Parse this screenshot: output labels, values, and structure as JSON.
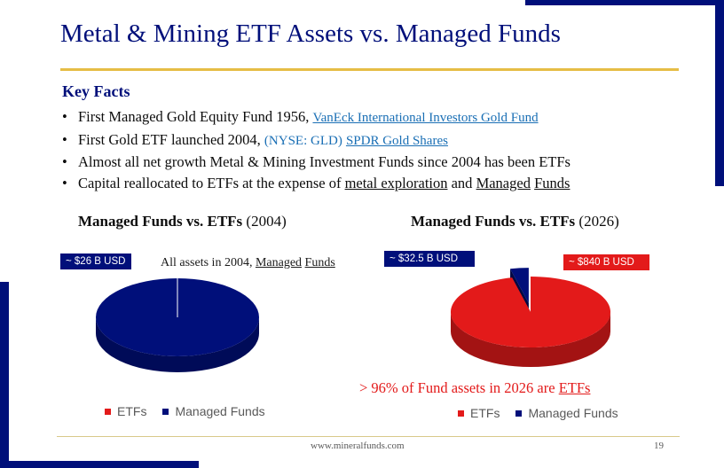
{
  "title": "Metal & Mining ETF Assets vs. Managed Funds",
  "key_facts": {
    "heading": "Key Facts",
    "bullet_symbol": "•",
    "bullets": [
      {
        "text": "First Managed Gold Equity Fund 1956, ",
        "link": "VanEck International Investors Gold Fund"
      },
      {
        "text": "First Gold ETF launched 2004, ",
        "ticker": "(NYSE: GLD)",
        "link": "SPDR Gold Shares"
      },
      {
        "text": "Almost all net growth Metal & Mining Investment Funds since 2004 has been ETFs"
      },
      {
        "text": "Capital reallocated to ETFs at the expense of ",
        "u1": "metal exploration",
        "mid": " and ",
        "u2": "Managed",
        "sp": " ",
        "u3": "Funds"
      }
    ]
  },
  "chart_data": [
    {
      "type": "pie",
      "title_bold": "Managed Funds vs. ETFs",
      "title_rest": " (2004)",
      "slices": [
        {
          "name": "ETFs",
          "value": 0,
          "color": "#e31a1a"
        },
        {
          "name": "Managed Funds",
          "value": 26,
          "color": "#000f7a"
        }
      ],
      "callouts": [
        {
          "text": "~ $26 B USD",
          "color": "#000f7a"
        }
      ],
      "note": {
        "text": "All assets in 2004, ",
        "u1": "Managed",
        "sp": " ",
        "u2": "Funds"
      },
      "legend_position": "bottom"
    },
    {
      "type": "pie",
      "title_bold": "Managed Funds vs. ETFs",
      "title_rest": " (2026)",
      "slices": [
        {
          "name": "ETFs",
          "value": 840,
          "color": "#e31a1a"
        },
        {
          "name": "Managed Funds",
          "value": 32.5,
          "color": "#000f7a"
        }
      ],
      "callouts": [
        {
          "text": "~ $32.5 B USD",
          "color": "#000f7a"
        },
        {
          "text": "~ $840 B USD",
          "color": "#e31a1a"
        }
      ],
      "note": {
        "text": "> 96% of Fund assets in 2026 are ",
        "u": "ETFs"
      },
      "legend_position": "bottom"
    }
  ],
  "footer": {
    "url": "www.mineralfunds.com",
    "page": "19"
  }
}
